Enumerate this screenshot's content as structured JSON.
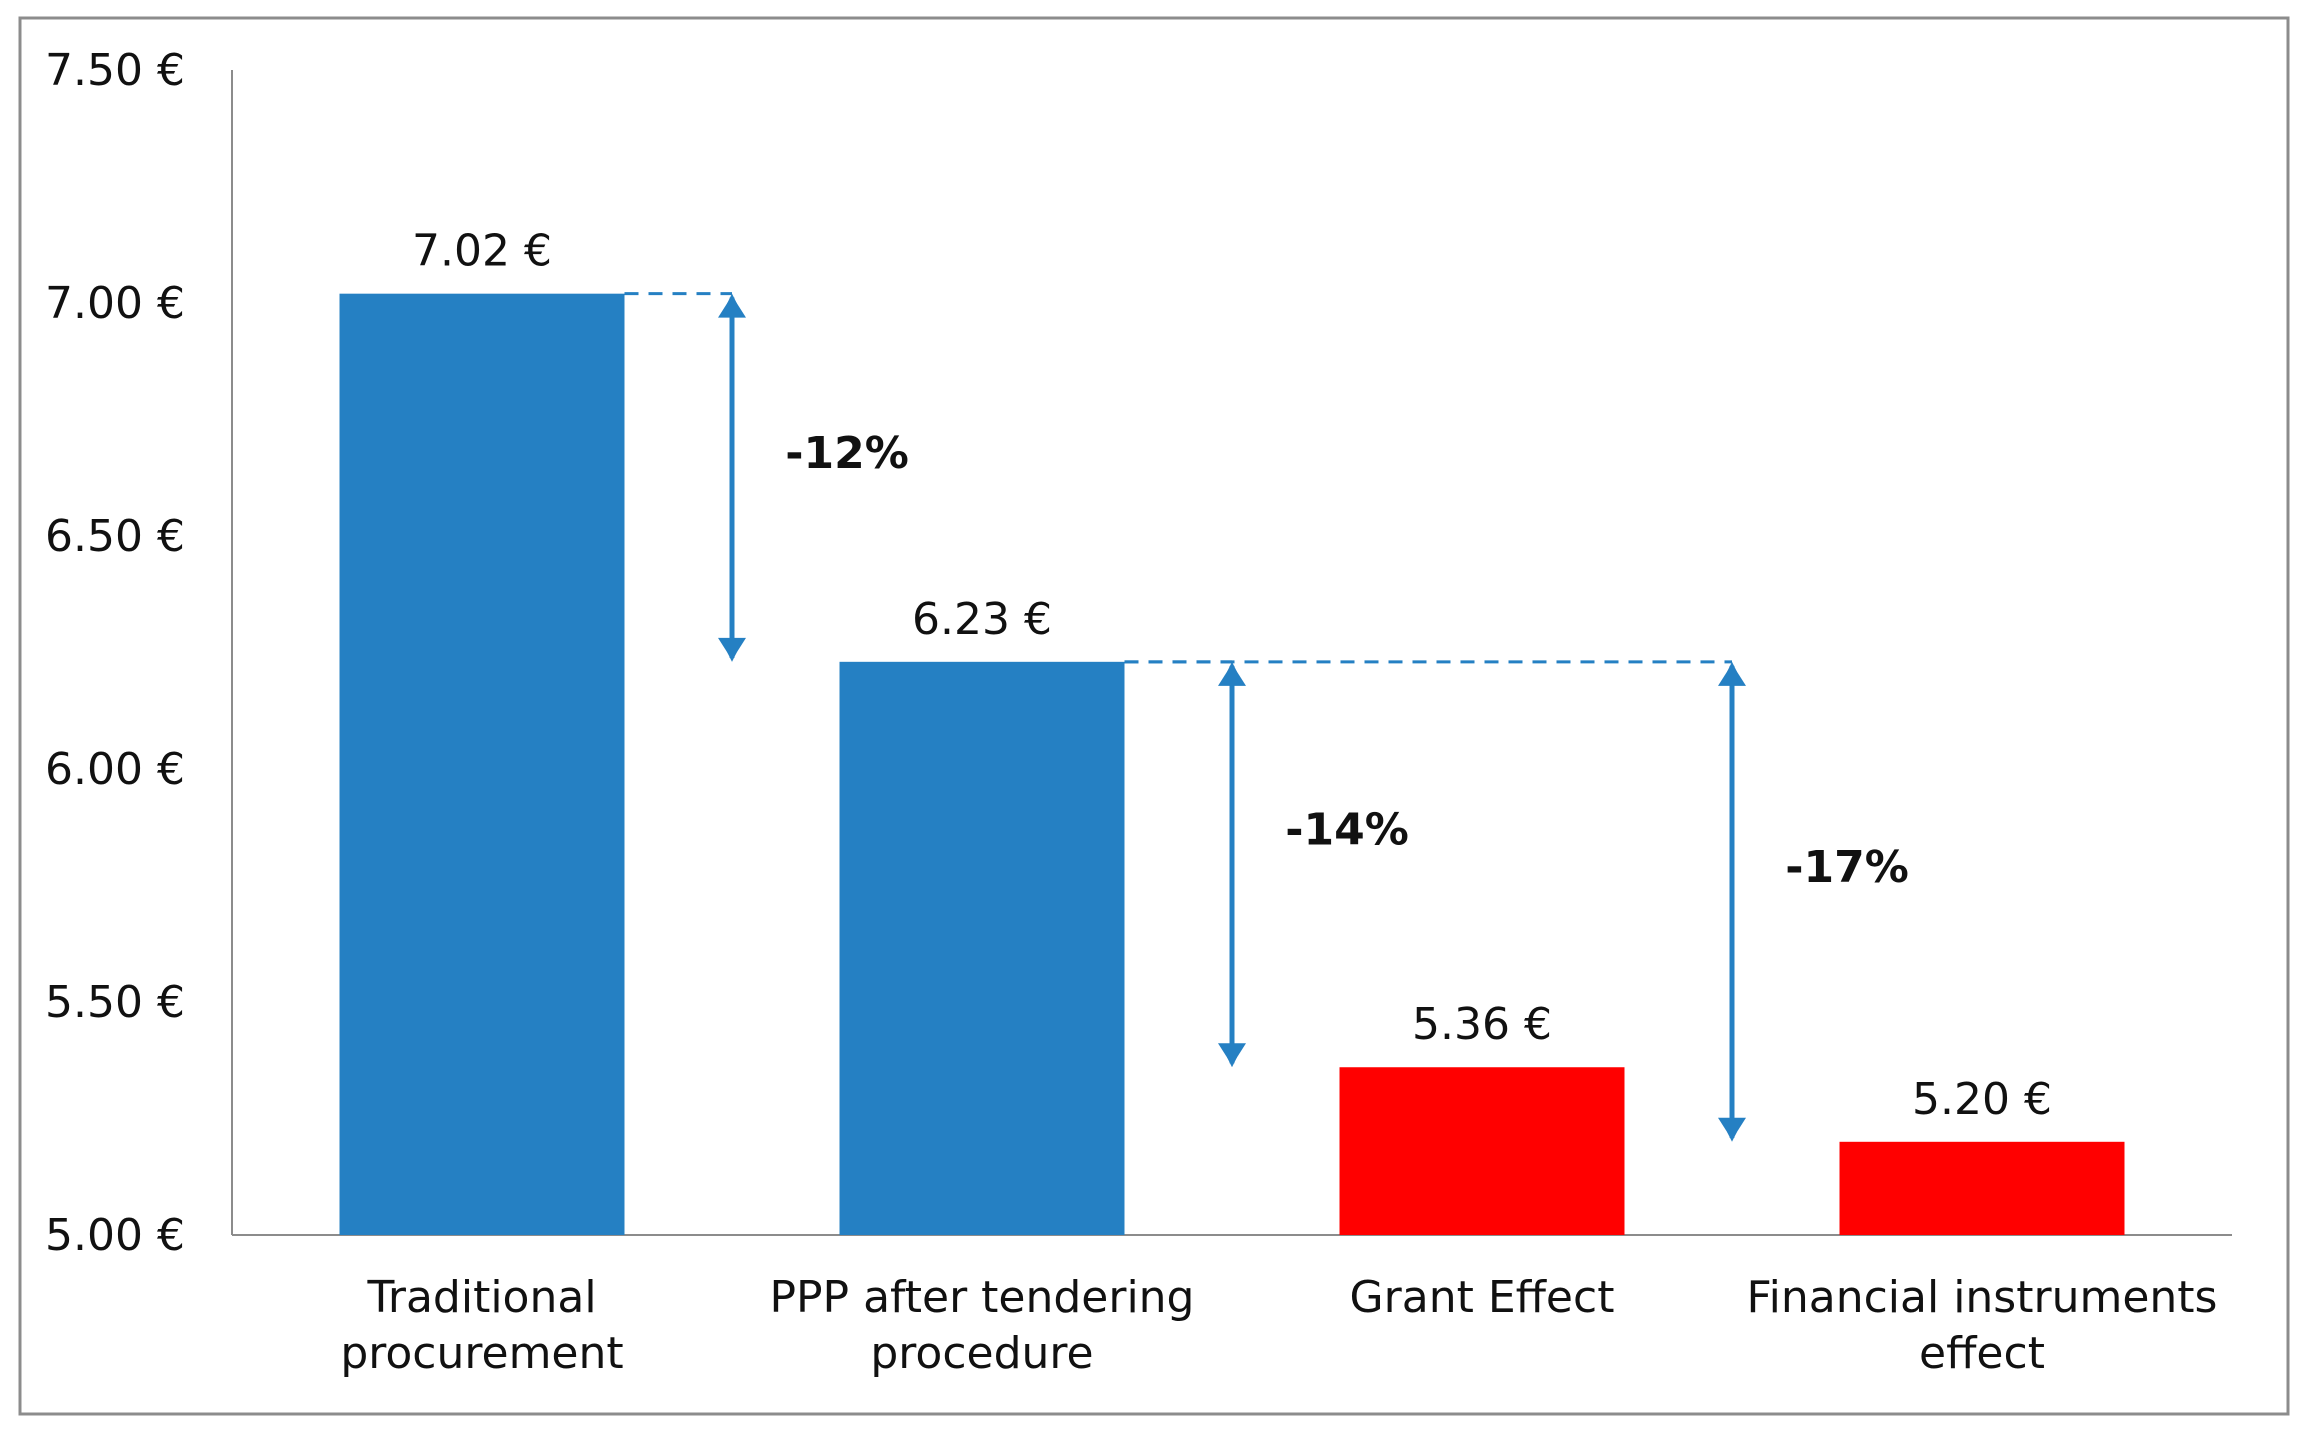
{
  "chart_data": {
    "type": "bar",
    "title": "",
    "xlabel": "",
    "ylabel": "",
    "ylim": [
      5.0,
      7.5
    ],
    "yticks": [
      5.0,
      5.5,
      6.0,
      6.5,
      7.0,
      7.5
    ],
    "ytick_labels": [
      "5.00 €",
      "5.50 €",
      "6.00 €",
      "6.50 €",
      "7.00 €",
      "7.50 €"
    ],
    "grid": false,
    "legend": "none",
    "categories": [
      [
        "Traditional",
        "procurement"
      ],
      [
        "PPP after tendering",
        "procedure"
      ],
      [
        "Grant Effect"
      ],
      [
        "Financial instruments",
        "effect"
      ]
    ],
    "values": [
      7.02,
      6.23,
      5.36,
      5.2
    ],
    "data_labels": [
      "7.02 €",
      "6.23 €",
      "5.36 €",
      "5.20 €"
    ],
    "bar_colors": [
      "#2580c3",
      "#2580c3",
      "#ff0000",
      "#ff0000"
    ],
    "annotations": [
      {
        "label": "-12%",
        "from_value": 7.02,
        "to_value": 6.23,
        "reference_bar": 0,
        "arrow_after_bar": 0
      },
      {
        "label": "-14%",
        "from_value": 6.23,
        "to_value": 5.36,
        "reference_bar": 1,
        "arrow_after_bar": 1
      },
      {
        "label": "-17%",
        "from_value": 6.23,
        "to_value": 5.2,
        "reference_bar": 1,
        "arrow_after_bar": 2
      }
    ],
    "accent_color": "#2580c3"
  }
}
